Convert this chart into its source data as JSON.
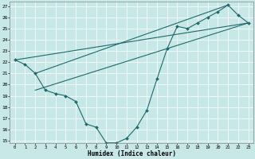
{
  "xlabel": "Humidex (Indice chaleur)",
  "xlim": [
    -0.5,
    23.5
  ],
  "ylim": [
    14.8,
    27.4
  ],
  "xticks": [
    0,
    1,
    2,
    3,
    4,
    5,
    6,
    7,
    8,
    9,
    10,
    11,
    12,
    13,
    14,
    15,
    16,
    17,
    18,
    19,
    20,
    21,
    22,
    23
  ],
  "yticks": [
    15,
    16,
    17,
    18,
    19,
    20,
    21,
    22,
    23,
    24,
    25,
    26,
    27
  ],
  "bg_color": "#c8e8e8",
  "grid_color": "#ffffff",
  "line_color": "#1a6b6b",
  "curve1_x": [
    0,
    1,
    2,
    3,
    4,
    5,
    6,
    7,
    8,
    9,
    10,
    11,
    12,
    13,
    14,
    15,
    16,
    17,
    18,
    19,
    20,
    21,
    22,
    23
  ],
  "curve1_y": [
    22.2,
    21.8,
    21.0,
    19.5,
    19.2,
    19.0,
    18.5,
    16.5,
    16.2,
    14.8,
    14.8,
    15.2,
    16.2,
    17.7,
    20.5,
    23.2,
    25.2,
    25.0,
    25.5,
    26.0,
    26.5,
    27.1,
    26.2,
    25.5
  ],
  "line2_x": [
    0,
    23
  ],
  "line2_y": [
    22.2,
    25.5
  ],
  "line3_x": [
    2,
    21
  ],
  "line3_y": [
    21.0,
    27.1
  ],
  "line4_x": [
    2,
    23
  ],
  "line4_y": [
    19.5,
    25.5
  ]
}
